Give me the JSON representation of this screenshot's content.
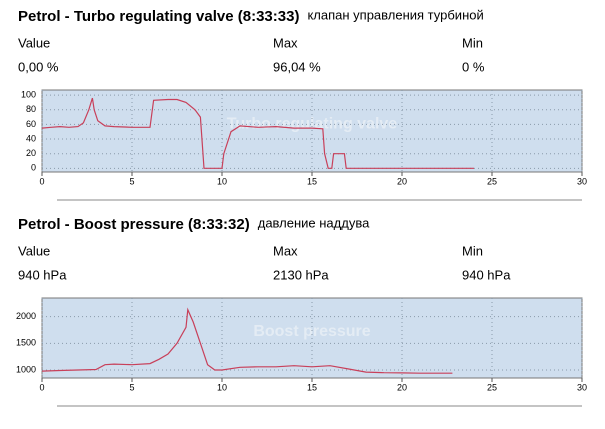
{
  "chart_data": [
    {
      "type": "line",
      "title": "Petrol - Turbo regulating valve (8:33:33)",
      "subtitle": "клапан управления турбиной",
      "stats": {
        "headers": [
          "Value",
          "Max",
          "Min"
        ],
        "values": [
          "0,00 %",
          "96,04 %",
          "0 %"
        ]
      },
      "watermark": "Turbo regulating valve",
      "x": [
        0,
        0.5,
        1,
        1.5,
        2,
        2.3,
        2.6,
        2.8,
        2.9,
        3.1,
        3.5,
        4,
        5,
        6,
        6.2,
        7,
        7.5,
        8,
        8.5,
        8.8,
        9,
        9.3,
        10,
        10.1,
        10.5,
        11,
        12,
        13,
        14,
        15,
        15.6,
        15.7,
        15.9,
        16.1,
        16.2,
        16.8,
        16.9,
        24
      ],
      "values": [
        55,
        56,
        57,
        56,
        57,
        62,
        80,
        96,
        80,
        65,
        58,
        57,
        56,
        56,
        93,
        94,
        94,
        90,
        80,
        70,
        0,
        0,
        0,
        20,
        50,
        58,
        56,
        57,
        55,
        55,
        54,
        20,
        0,
        0,
        20,
        20,
        0,
        0
      ],
      "color": "#c8405a",
      "xlim": [
        0,
        30
      ],
      "xticks": [
        0,
        5,
        10,
        15,
        20,
        25,
        30
      ],
      "ylim": [
        -5,
        107
      ],
      "yticks": [
        0,
        20,
        40,
        60,
        80,
        100
      ],
      "grid": true
    },
    {
      "type": "line",
      "title": "Petrol - Boost pressure (8:33:32)",
      "subtitle": "давление наддува",
      "stats": {
        "headers": [
          "Value",
          "Max",
          "Min"
        ],
        "values": [
          "940 hPa",
          "2130 hPa",
          "940 hPa"
        ]
      },
      "watermark": "Boost pressure",
      "x": [
        0,
        1,
        2,
        3,
        3.5,
        4,
        5,
        6,
        6.5,
        7,
        7.5,
        8,
        8.1,
        8.4,
        8.8,
        9.2,
        9.6,
        10,
        11,
        12,
        13,
        14,
        15,
        16,
        17,
        18,
        19,
        20,
        21,
        22,
        22.8
      ],
      "values": [
        980,
        990,
        1000,
        1010,
        1100,
        1110,
        1100,
        1120,
        1200,
        1300,
        1500,
        1800,
        2130,
        1900,
        1500,
        1100,
        1000,
        1000,
        1050,
        1060,
        1060,
        1080,
        1060,
        1080,
        1020,
        960,
        950,
        945,
        940,
        940,
        940
      ],
      "color": "#c8405a",
      "xlim": [
        0,
        30
      ],
      "xticks": [
        0,
        5,
        10,
        15,
        20,
        25,
        30
      ],
      "ylim": [
        850,
        2350
      ],
      "yticks": [
        1000,
        1500,
        2000
      ],
      "grid": true
    }
  ]
}
